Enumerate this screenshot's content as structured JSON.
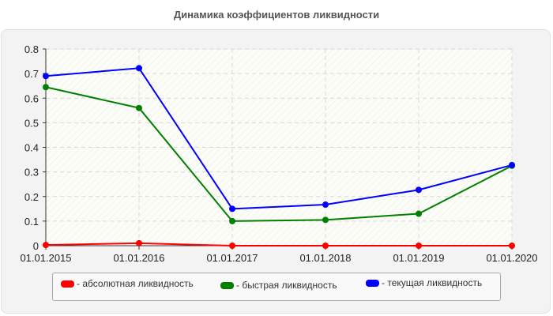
{
  "title": "Динамика коэффициентов ликвидности",
  "legend": [
    {
      "label": "- абсолютная ликвидность",
      "color": "#ff0000"
    },
    {
      "label": "- быстрая ликвидность",
      "color": "#008000"
    },
    {
      "label": "- текущая ликвидность",
      "color": "#0000ff"
    }
  ],
  "chart_data": {
    "type": "line",
    "title": "Динамика коэффициентов ликвидности",
    "xlabel": "",
    "ylabel": "",
    "categories": [
      "01.01.2015",
      "01.01.2016",
      "01.01.2017",
      "01.01.2018",
      "01.01.2019",
      "01.01.2020"
    ],
    "y_ticks": [
      "0",
      "0.1",
      "0.2",
      "0.3",
      "0.4",
      "0.5",
      "0.6",
      "0.7",
      "0.8"
    ],
    "ylim": [
      0,
      0.8
    ],
    "grid": true,
    "legend_position": "bottom",
    "series": [
      {
        "name": "абсолютная ликвидность",
        "color": "#ff0000",
        "values": [
          0.003,
          0.01,
          0.0,
          0.0,
          0.0,
          0.0
        ]
      },
      {
        "name": "быстрая ликвидность",
        "color": "#008000",
        "values": [
          0.645,
          0.56,
          0.1,
          0.105,
          0.13,
          0.325
        ]
      },
      {
        "name": "текущая ликвидность",
        "color": "#0000ff",
        "values": [
          0.69,
          0.722,
          0.15,
          0.167,
          0.227,
          0.328
        ]
      }
    ]
  }
}
